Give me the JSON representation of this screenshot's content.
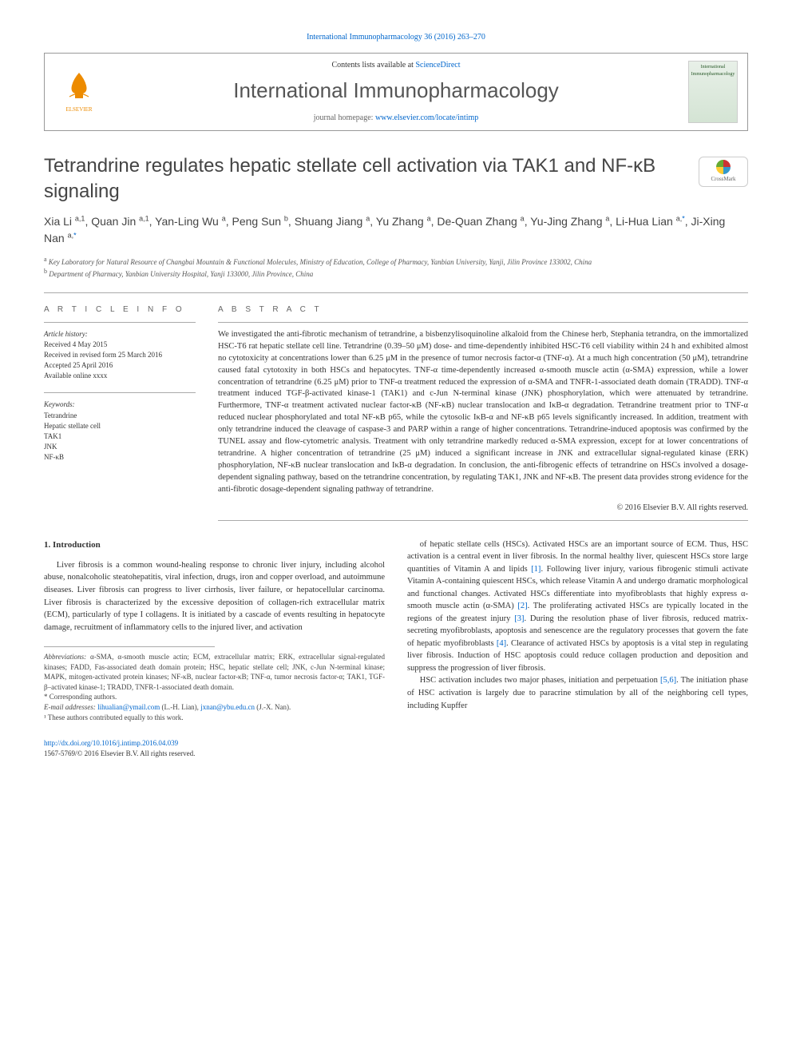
{
  "top_citation_link": "International Immunopharmacology 36 (2016) 263–270",
  "header": {
    "contents_prefix": "Contents lists available at ",
    "contents_link": "ScienceDirect",
    "journal_title": "International Immunopharmacology",
    "homepage_prefix": "journal homepage: ",
    "homepage_url": "www.elsevier.com/locate/intimp",
    "elsevier_label": "ELSEVIER",
    "cover_label": "International Immunopharmacology"
  },
  "crossmark_label": "CrossMark",
  "article": {
    "title": "Tetrandrine regulates hepatic stellate cell activation via TAK1 and NF-κB signaling",
    "authors_html": "Xia Li <sup>a,1</sup>, Quan Jin <sup>a,1</sup>, Yan-Ling Wu <sup>a</sup>, Peng Sun <sup>b</sup>, Shuang Jiang <sup>a</sup>, Yu Zhang <sup>a</sup>, De-Quan Zhang <sup>a</sup>, Yu-Jing Zhang <sup>a</sup>, Li-Hua Lian <sup>a,<a href='#'>*</a></sup>, Ji-Xing Nan <sup>a,<a href='#'>*</a></sup>",
    "affiliations": [
      {
        "sup": "a",
        "text": "Key Laboratory for Natural Resource of Changbai Mountain & Functional Molecules, Ministry of Education, College of Pharmacy, Yanbian University, Yanji, Jilin Province 133002, China"
      },
      {
        "sup": "b",
        "text": "Department of Pharmacy, Yanbian University Hospital, Yanji 133000, Jilin Province, China"
      }
    ]
  },
  "info": {
    "heading": "A R T I C L E   I N F O",
    "history_label": "Article history:",
    "history": [
      "Received 4 May 2015",
      "Received in revised form 25 March 2016",
      "Accepted 25 April 2016",
      "Available online xxxx"
    ],
    "keywords_label": "Keywords:",
    "keywords": [
      "Tetrandrine",
      "Hepatic stellate cell",
      "TAK1",
      "JNK",
      "NF-κB"
    ]
  },
  "abstract": {
    "heading": "A B S T R A C T",
    "text": "We investigated the anti-fibrotic mechanism of tetrandrine, a bisbenzylisoquinoline alkaloid from the Chinese herb, Stephania tetrandra, on the immortalized HSC-T6 rat hepatic stellate cell line. Tetrandrine (0.39–50 μM) dose- and time-dependently inhibited HSC-T6 cell viability within 24 h and exhibited almost no cytotoxicity at concentrations lower than 6.25 μM in the presence of tumor necrosis factor-α (TNF-α). At a much high concentration (50 μM), tetrandrine caused fatal cytotoxity in both HSCs and hepatocytes. TNF-α time-dependently increased α-smooth muscle actin (α-SMA) expression, while a lower concentration of tetrandrine (6.25 μM) prior to TNF-α treatment reduced the expression of α-SMA and TNFR-1-associated death domain (TRADD). TNF-α treatment induced TGF-β-activated kinase-1 (TAK1) and c-Jun N-terminal kinase (JNK) phosphorylation, which were attenuated by tetrandrine. Furthermore, TNF-α treatment activated nuclear factor-κB (NF-κB) nuclear translocation and IκB-α degradation. Tetrandrine treatment prior to TNF-α reduced nuclear phosphorylated and total NF-κB p65, while the cytosolic IκB-α and NF-κB p65 levels significantly increased. In addition, treatment with only tetrandrine induced the cleavage of caspase-3 and PARP within a range of higher concentrations. Tetrandrine-induced apoptosis was confirmed by the TUNEL assay and flow-cytometric analysis. Treatment with only tetrandrine markedly reduced α-SMA expression, except for at lower concentrations of tetrandrine. A higher concentration of tetrandrine (25 μM) induced a significant increase in JNK and extracellular signal-regulated kinase (ERK) phosphorylation, NF-κB nuclear translocation and IκB-α degradation. In conclusion, the anti-fibrogenic effects of tetrandrine on HSCs involved a dosage-dependent signaling pathway, based on the tetrandrine concentration, by regulating TAK1, JNK and NF-κB. The present data provides strong evidence for the anti-fibrotic dosage-dependent signaling pathway of tetrandrine.",
    "copyright": "© 2016 Elsevier B.V. All rights reserved."
  },
  "body": {
    "section_heading": "1. Introduction",
    "col1_p1": "Liver fibrosis is a common wound-healing response to chronic liver injury, including alcohol abuse, nonalcoholic steatohepatitis, viral infection, drugs, iron and copper overload, and autoimmune diseases. Liver fibrosis can progress to liver cirrhosis, liver failure, or hepatocellular carcinoma. Liver fibrosis is characterized by the excessive deposition of collagen-rich extracellular matrix (ECM), particularly of type I collagens. It is initiated by a cascade of events resulting in hepatocyte damage, recruitment of inflammatory cells to the injured liver, and activation",
    "col2_p1": "of hepatic stellate cells (HSCs). Activated HSCs are an important source of ECM. Thus, HSC activation is a central event in liver fibrosis. In the normal healthy liver, quiescent HSCs store large quantities of Vitamin A and lipids [1]. Following liver injury, various fibrogenic stimuli activate Vitamin A-containing quiescent HSCs, which release Vitamin A and undergo dramatic morphological and functional changes. Activated HSCs differentiate into myofibroblasts that highly express α-smooth muscle actin (α-SMA) [2]. The proliferating activated HSCs are typically located in the regions of the greatest injury [3]. During the resolution phase of liver fibrosis, reduced matrix-secreting myofibroblasts, apoptosis and senescence are the regulatory processes that govern the fate of hepatic myofibroblasts [4]. Clearance of activated HSCs by apoptosis is a vital step in regulating liver fibrosis. Induction of HSC apoptosis could reduce collagen production and deposition and suppress the progression of liver fibrosis.",
    "col2_p2": "HSC activation includes two major phases, initiation and perpetuation [5,6]. The initiation phase of HSC activation is largely due to paracrine stimulation by all of the neighboring cell types, including Kupffer"
  },
  "footnotes": {
    "abbr_label": "Abbreviations:",
    "abbr_text": " α-SMA, α-smooth muscle actin; ECM, extracellular matrix; ERK, extracellular signal-regulated kinases; FADD, Fas-associated death domain protein; HSC, hepatic stellate cell; JNK, c-Jun N-terminal kinase; MAPK, mitogen-activated protein kinases; NF-κB, nuclear factor-κB; TNF-α, tumor necrosis factor-α; TAK1, TGF-β–activated kinase-1; TRADD, TNFR-1-associated death domain.",
    "corr_label": "* Corresponding authors.",
    "email_label": "E-mail addresses:",
    "email1": "lihualian@ymail.com",
    "email1_who": " (L.-H. Lian), ",
    "email2": "jxnan@ybu.edu.cn",
    "email2_who": " (J.-X. Nan).",
    "equal": "¹ These authors contributed equally to this work."
  },
  "footer": {
    "doi": "http://dx.doi.org/10.1016/j.intimp.2016.04.039",
    "issn_line": "1567-5769/© 2016 Elsevier B.V. All rights reserved."
  },
  "refs": {
    "r1": "[1]",
    "r2": "[2]",
    "r3": "[3]",
    "r4": "[4]",
    "r56": "[5,6]"
  }
}
